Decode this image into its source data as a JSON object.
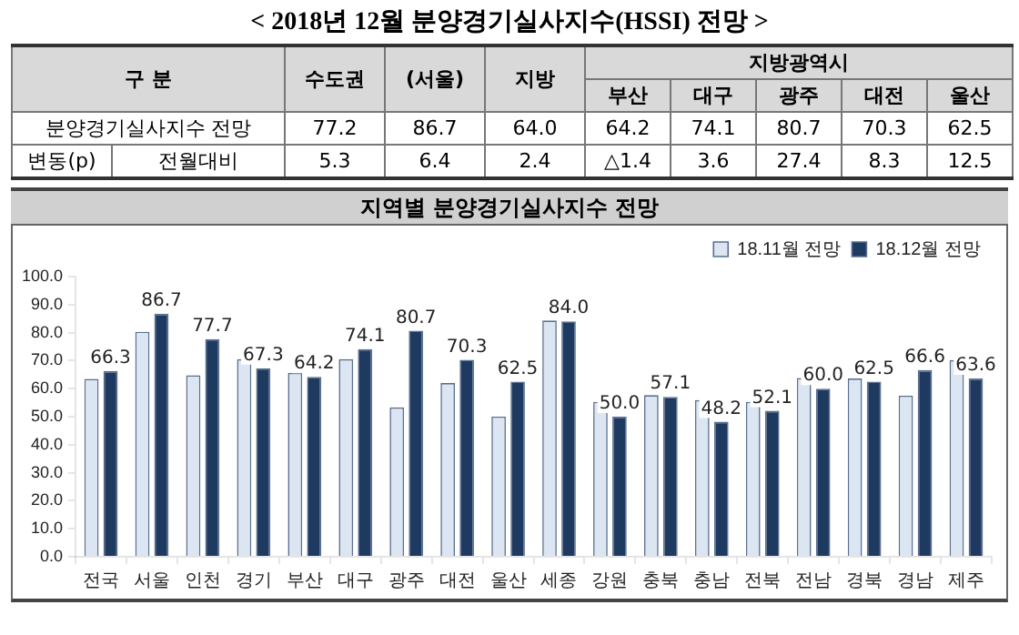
{
  "chart_data": [
    {
      "type": "other",
      "title": "< 2018년 12월 분양경기실사지수(HSSI) 전망 >",
      "annotations": [
        "구 분",
        "수도권",
        "(서울)",
        "지방",
        "지방광역시",
        "부산",
        "대구",
        "광주",
        "대전",
        "울산",
        "분양경기실사지수 전망",
        "77.2",
        "86.7",
        "64.0",
        "64.2",
        "74.1",
        "80.7",
        "70.3",
        "62.5",
        "변동(p)",
        "전월대비",
        "5.3",
        "6.4",
        "2.4",
        "△1.4",
        "3.6",
        "27.4",
        "8.3",
        "12.5"
      ]
    },
    {
      "type": "bar",
      "title": "지역별 분양경기실사지수 전망",
      "categories": [
        "전국",
        "서울",
        "인천",
        "경기",
        "부산",
        "대구",
        "광주",
        "대전",
        "울산",
        "세종",
        "강원",
        "충북",
        "충남",
        "전북",
        "전남",
        "경북",
        "경남",
        "제주"
      ],
      "series": [
        {
          "name": "18.11월 전망",
          "color": "#dce6f2",
          "values": [
            63.5,
            80.3,
            64.8,
            70.5,
            65.6,
            70.5,
            53.3,
            62.0,
            50.0,
            84.3,
            55.3,
            57.7,
            55.9,
            55.3,
            63.8,
            63.6,
            57.5,
            70.2
          ]
        },
        {
          "name": "18.12월 전망",
          "color": "#1f3a60",
          "values": [
            66.3,
            86.7,
            77.7,
            67.3,
            64.2,
            74.1,
            80.7,
            70.3,
            62.5,
            84.0,
            50.0,
            57.1,
            48.2,
            52.1,
            60.0,
            62.5,
            66.6,
            63.6
          ],
          "value_labels": [
            "66.3",
            "86.7",
            "77.7",
            "67.3",
            "64.2",
            "74.1",
            "80.7",
            "70.3",
            "62.5",
            "84.0",
            "50.0",
            "57.1",
            "48.2",
            "52.1",
            "60.0",
            "62.5",
            "66.6",
            "63.6"
          ]
        }
      ],
      "ylim": [
        0,
        100
      ],
      "yticks": [
        {
          "value": 0,
          "label": "0.0"
        },
        {
          "value": 10,
          "label": "10.0"
        },
        {
          "value": 20,
          "label": "20.0"
        },
        {
          "value": 30,
          "label": "30.0"
        },
        {
          "value": 40,
          "label": "40.0"
        },
        {
          "value": 50,
          "label": "50.0"
        },
        {
          "value": 60,
          "label": "60.0"
        },
        {
          "value": 70,
          "label": "70.0"
        },
        {
          "value": 80,
          "label": "80.0"
        },
        {
          "value": 90,
          "label": "90.0"
        },
        {
          "value": 100,
          "label": "100.0"
        }
      ],
      "grid": false,
      "legend": "top right"
    }
  ]
}
